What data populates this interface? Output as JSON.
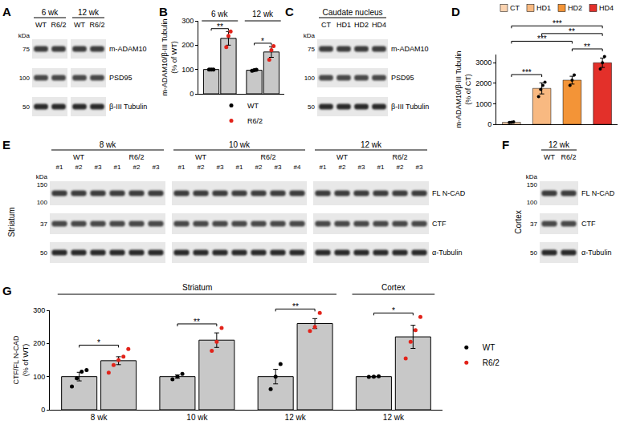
{
  "blots": [
    {
      "panel": "A",
      "kda_label": "kDa",
      "groups": [
        {
          "label": "6 wk",
          "columns": [
            {
              "label": "WT"
            },
            {
              "label": "R6/2"
            }
          ]
        },
        {
          "label": "12 wk",
          "columns": [
            {
              "label": "WT"
            },
            {
              "label": "R6/2"
            }
          ]
        }
      ],
      "rows": [
        {
          "label": "m-ADAM10",
          "kda": [
            75
          ]
        },
        {
          "label": "PSD95",
          "kda": [
            100
          ]
        },
        {
          "label": "β-III Tubulin",
          "kda": [
            50
          ]
        }
      ]
    },
    {
      "panel": "C",
      "kda_label": "kDa",
      "groups": [
        {
          "label": "Caudate nucleus",
          "columns": [
            {
              "label": "CT"
            },
            {
              "label": "HD1"
            },
            {
              "label": "HD2"
            },
            {
              "label": "HD4"
            }
          ]
        }
      ],
      "rows": [
        {
          "label": "m-ADAM10",
          "kda": [
            75
          ]
        },
        {
          "label": "PSD95",
          "kda": [
            100
          ]
        },
        {
          "label": "β-III Tubulin",
          "kda": [
            50
          ]
        }
      ]
    },
    {
      "panel": "E",
      "kda_label": "kDa",
      "side": "Striatum",
      "groups": [
        {
          "label": "8 wk",
          "columns": [
            {
              "label": "WT",
              "sub": [
                "#1",
                "#2",
                "#3"
              ]
            },
            {
              "label": "R6/2",
              "sub": [
                "#1",
                "#2",
                "#3"
              ]
            }
          ]
        },
        {
          "label": "10 wk",
          "columns": [
            {
              "label": "WT",
              "sub": [
                "#1",
                "#2",
                "#3"
              ]
            },
            {
              "label": "R6/2",
              "sub": [
                "#1",
                "#2",
                "#3",
                "#4"
              ]
            }
          ]
        },
        {
          "label": "12 wk",
          "columns": [
            {
              "label": "WT",
              "sub": [
                "#1",
                "#2",
                "#3"
              ]
            },
            {
              "label": "R6/2",
              "sub": [
                "#1",
                "#2",
                "#3"
              ]
            }
          ]
        }
      ],
      "rows": [
        {
          "label": "FL N-CAD",
          "kda": [
            150,
            100
          ]
        },
        {
          "label": "CTF",
          "kda": [
            37
          ]
        },
        {
          "label": "α-Tubulin",
          "kda": [
            50
          ]
        }
      ]
    },
    {
      "panel": "F",
      "kda_label": "kDa",
      "side": "Cortex",
      "groups": [
        {
          "label": "12 wk",
          "columns": [
            {
              "label": "WT"
            },
            {
              "label": "R6/2"
            }
          ]
        }
      ],
      "rows": [
        {
          "label": "FL N-CAD",
          "kda": [
            150,
            100
          ]
        },
        {
          "label": "CTF",
          "kda": [
            37
          ]
        },
        {
          "label": "α-Tubulin",
          "kda": [
            50
          ]
        }
      ]
    }
  ],
  "chart_data": [
    {
      "panel": "B",
      "type": "bar",
      "ylabel": [
        "m-ADAM10/β-III Tubulin",
        "(% of WT)"
      ],
      "categories": [
        "6 wk",
        "12 wk"
      ],
      "series": [
        {
          "name": "WT",
          "color": "#000000",
          "values": [
            100,
            97
          ],
          "error": [
            0,
            2
          ],
          "points": [
            [
              100,
              100,
              100
            ],
            [
              95,
              97,
              99
            ]
          ]
        },
        {
          "name": "R6/2",
          "color": "#e2231a",
          "values": [
            228,
            172
          ],
          "error": [
            28,
            22
          ],
          "points": [
            [
              192,
              238,
              256
            ],
            [
              140,
              180,
              196
            ]
          ]
        }
      ],
      "ylim": [
        0,
        300
      ],
      "yticks": [
        0,
        100,
        200,
        300
      ],
      "grid": false,
      "legend": "bottom",
      "tick_labels": "y",
      "significance": [
        {
          "index": 0,
          "text": "**"
        },
        {
          "index": 1,
          "text": "*"
        }
      ]
    },
    {
      "panel": "D",
      "type": "bar",
      "ylabel": [
        "m-ADAM10/β-III Tubulin",
        "(% of CT)"
      ],
      "categories": [
        "CT",
        "HD1",
        "HD2",
        "HD4"
      ],
      "colors": [
        "#fbd3b0",
        "#f8b981",
        "#f39437",
        "#e3302a"
      ],
      "values": [
        100,
        1750,
        2150,
        3000
      ],
      "error": [
        20,
        270,
        190,
        230
      ],
      "points": [
        [
          85,
          100,
          115
        ],
        [
          1350,
          1700,
          1900,
          2050
        ],
        [
          1900,
          2150,
          2400
        ],
        [
          2700,
          3000,
          3300
        ]
      ],
      "ylim": [
        0,
        3400
      ],
      "yticks": [
        0,
        1000,
        2000,
        3000
      ],
      "grid": false,
      "legend": "top",
      "tick_labels": "y",
      "significance": [
        {
          "pair": [
            "CT",
            "HD1"
          ],
          "text": "***"
        },
        {
          "pair": [
            "CT",
            "HD2"
          ],
          "text": "***"
        },
        {
          "pair": [
            "CT",
            "HD4"
          ],
          "text": "***"
        },
        {
          "pair": [
            "HD1",
            "HD4"
          ],
          "text": "**"
        },
        {
          "pair": [
            "HD2",
            "HD4"
          ],
          "text": "**"
        }
      ]
    },
    {
      "panel": "G",
      "type": "bar",
      "ylabel": [
        "CTF/FL N-CAD",
        "(% of WT)"
      ],
      "categories": [
        "8 wk",
        "10 wk",
        "12 wk",
        "12 wk"
      ],
      "sections": [
        {
          "label": "Striatum",
          "from": 0,
          "to": 2
        },
        {
          "label": "Cortex",
          "from": 3,
          "to": 3
        }
      ],
      "series": [
        {
          "name": "WT",
          "color": "#000000",
          "values": [
            100,
            100,
            100,
            100
          ],
          "error": [
            13,
            5,
            22,
            1
          ],
          "points": [
            [
              70,
              95,
              115,
              120
            ],
            [
              92,
              100,
              108
            ],
            [
              62,
              100,
              138
            ],
            [
              99,
              100,
              101
            ]
          ]
        },
        {
          "name": "R6/2",
          "color": "#e2231a",
          "values": [
            148,
            210,
            260,
            220
          ],
          "error": [
            12,
            22,
            15,
            35
          ],
          "points": [
            [
              112,
              135,
              150,
              160,
              183
            ],
            [
              178,
              205,
              247
            ],
            [
              238,
              250,
              292
            ],
            [
              155,
              205,
              240,
              280
            ]
          ]
        }
      ],
      "ylim": [
        0,
        300
      ],
      "yticks": [
        0,
        100,
        200,
        300
      ],
      "grid": false,
      "legend": "right",
      "significance": [
        {
          "index": 0,
          "text": "*"
        },
        {
          "index": 1,
          "text": "**"
        },
        {
          "index": 2,
          "text": "**"
        },
        {
          "index": 3,
          "text": "*"
        }
      ]
    }
  ]
}
